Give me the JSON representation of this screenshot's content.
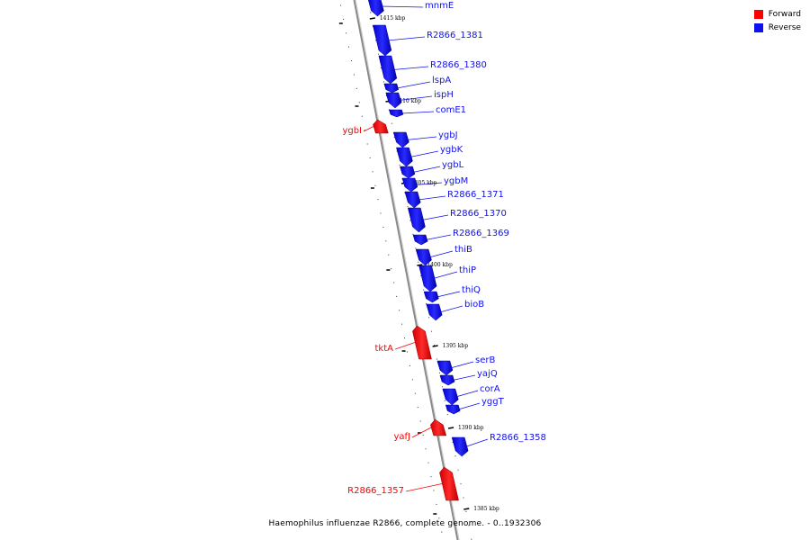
{
  "legend": {
    "forward_label": "Forward",
    "reverse_label": "Reverse",
    "forward_color": "#ff0000",
    "reverse_color": "#1010ee"
  },
  "footer": "Haemophilus influenzae R2866, complete genome. - 0..1932306",
  "ticks": [
    "1415 kbp",
    "1410 kbp",
    "1405 kbp",
    "1400 kbp",
    "1395 kbp",
    "1390 kbp",
    "1385 kbp"
  ],
  "genes": [
    {
      "name": "mnmE",
      "strand": "reverse"
    },
    {
      "name": "R2866_1381",
      "strand": "reverse"
    },
    {
      "name": "R2866_1380",
      "strand": "reverse"
    },
    {
      "name": "lspA",
      "strand": "reverse"
    },
    {
      "name": "ispH",
      "strand": "reverse"
    },
    {
      "name": "comE1",
      "strand": "reverse"
    },
    {
      "name": "ygbI",
      "strand": "forward"
    },
    {
      "name": "ygbJ",
      "strand": "reverse"
    },
    {
      "name": "ygbK",
      "strand": "reverse"
    },
    {
      "name": "ygbL",
      "strand": "reverse"
    },
    {
      "name": "ygbM",
      "strand": "reverse"
    },
    {
      "name": "R2866_1371",
      "strand": "reverse"
    },
    {
      "name": "R2866_1370",
      "strand": "reverse"
    },
    {
      "name": "R2866_1369",
      "strand": "reverse"
    },
    {
      "name": "thiB",
      "strand": "reverse"
    },
    {
      "name": "thiP",
      "strand": "reverse"
    },
    {
      "name": "thiQ",
      "strand": "reverse"
    },
    {
      "name": "bioB",
      "strand": "reverse"
    },
    {
      "name": "tktA",
      "strand": "forward"
    },
    {
      "name": "serB",
      "strand": "reverse"
    },
    {
      "name": "yajQ",
      "strand": "reverse"
    },
    {
      "name": "corA",
      "strand": "reverse"
    },
    {
      "name": "yggT",
      "strand": "reverse"
    },
    {
      "name": "yafJ",
      "strand": "forward"
    },
    {
      "name": "R2866_1358",
      "strand": "reverse"
    },
    {
      "name": "R2866_1357",
      "strand": "forward"
    }
  ]
}
